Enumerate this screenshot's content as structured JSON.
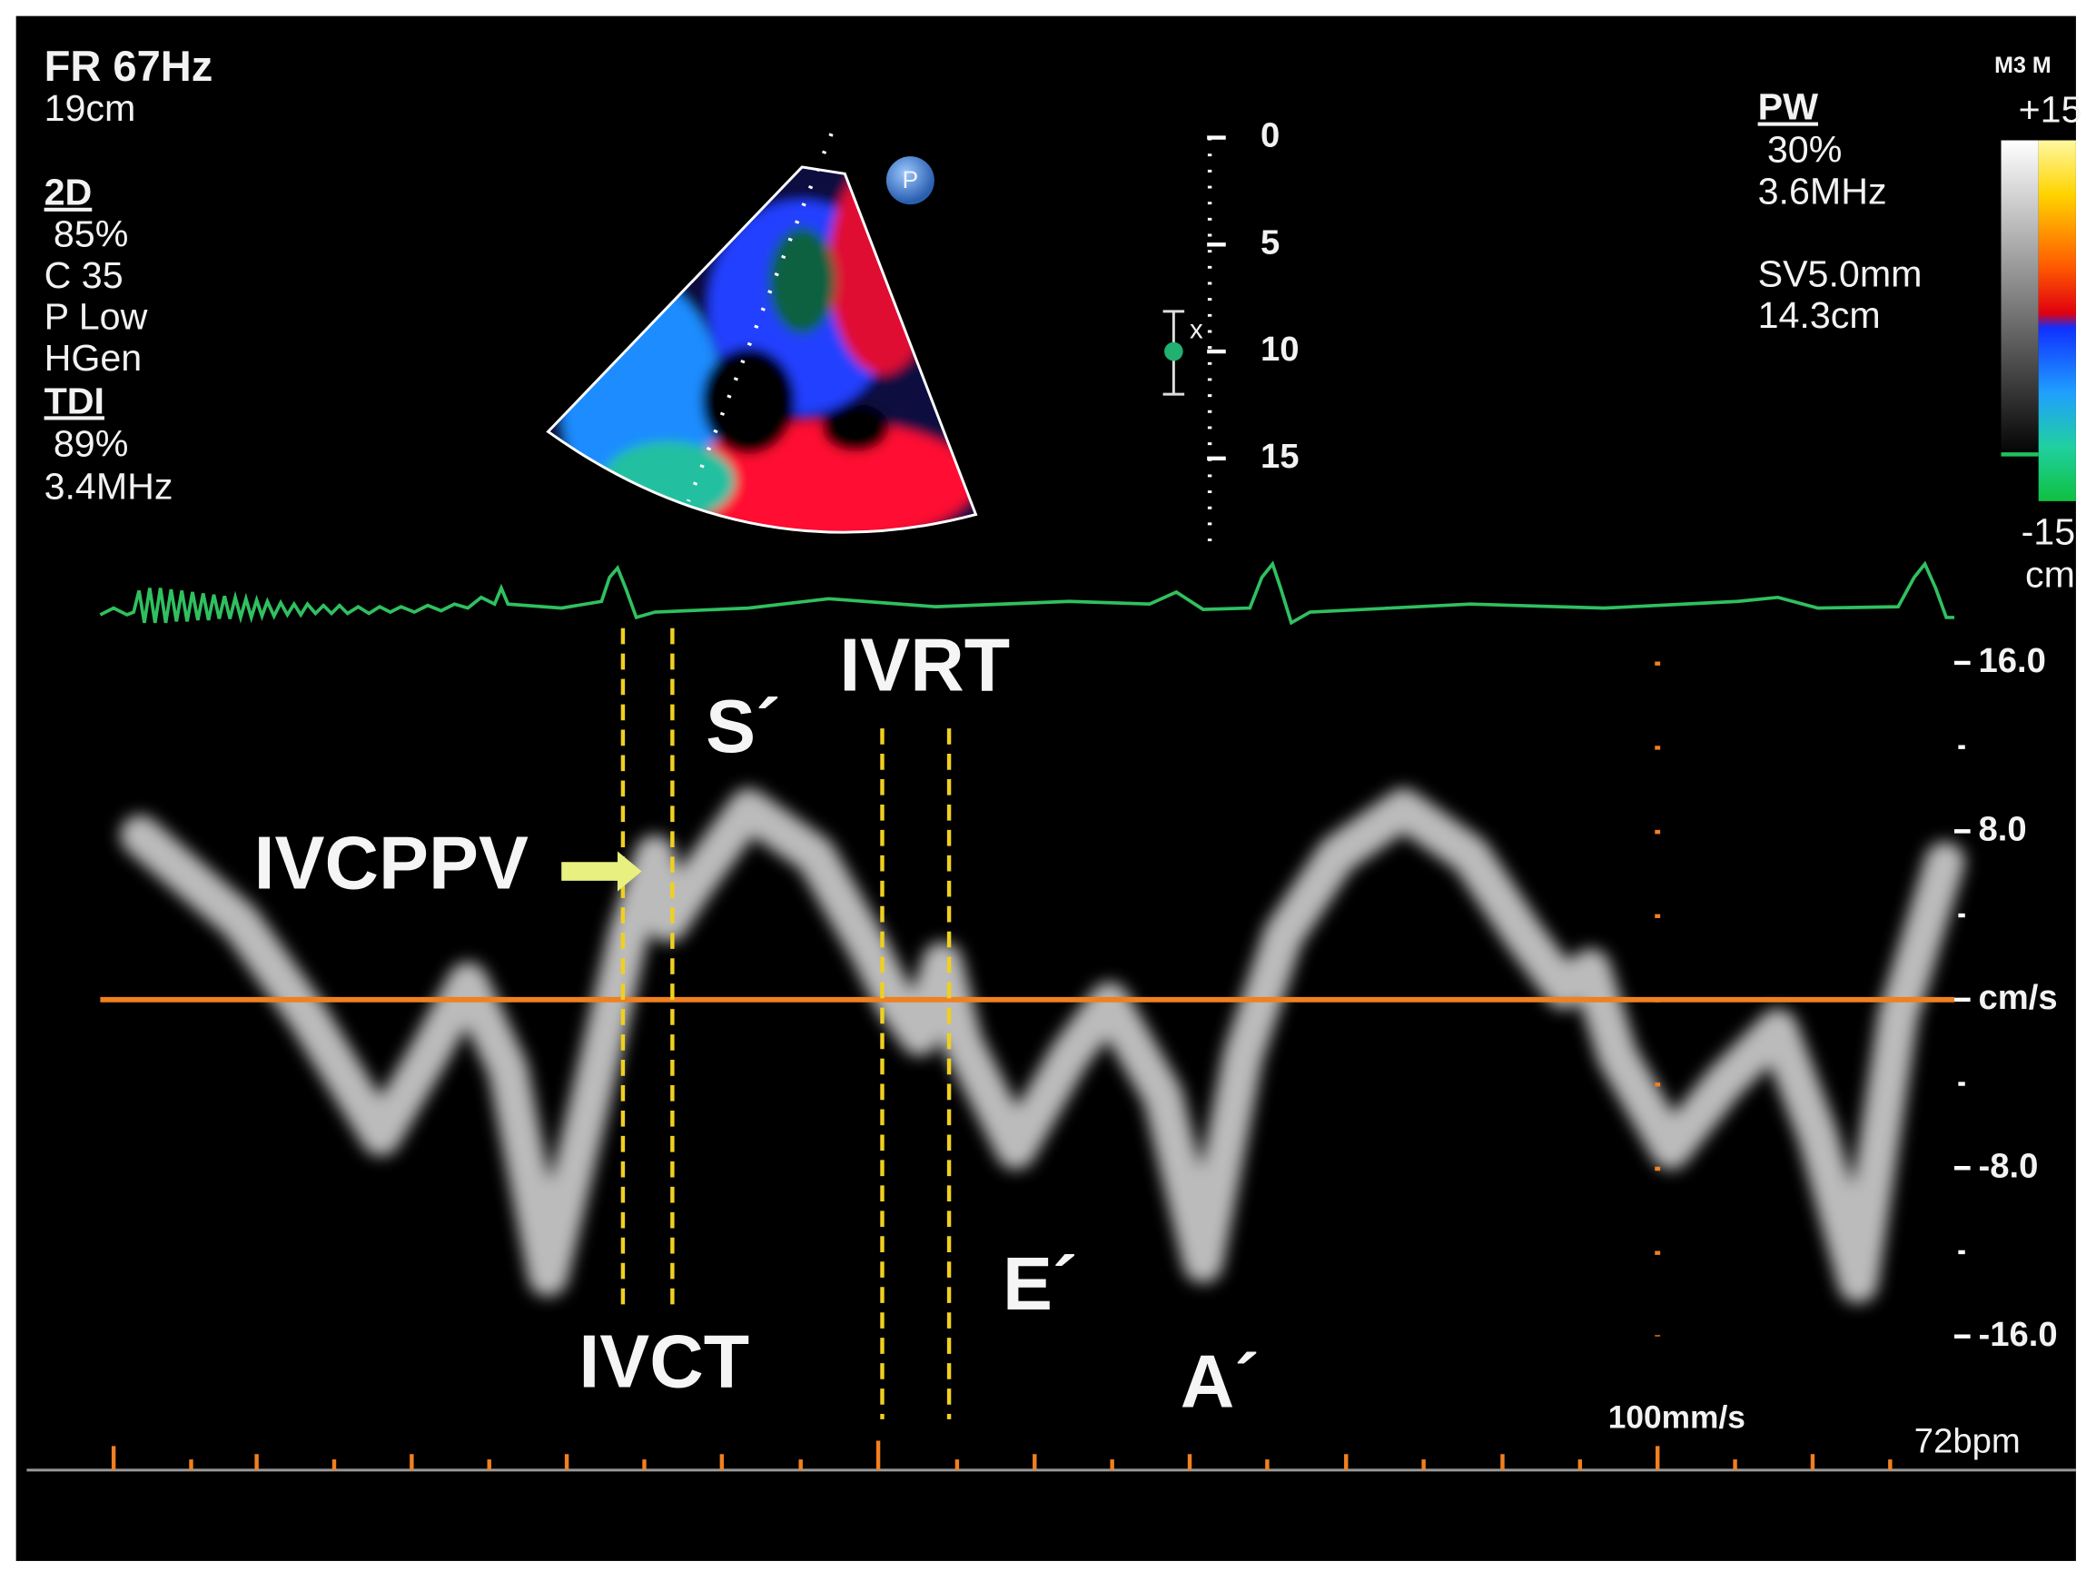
{
  "left_panel": {
    "lines": [
      "FR 67Hz",
      "19cm"
    ],
    "mode_2d": {
      "label": "2D",
      "lines": [
        "85%",
        "C 35",
        "P Low",
        "HGen"
      ]
    },
    "tdi": {
      "label": "TDI",
      "lines": [
        "89%",
        "3.4MHz"
      ]
    }
  },
  "right_panel": {
    "label": "PW",
    "lines": [
      "30%",
      "3.6MHz",
      "SV5.0mm",
      "14.3cm"
    ]
  },
  "color_bar": {
    "title": "M3 M",
    "top": "+15",
    "bottom": "-15",
    "unit": "cm"
  },
  "sector_marker": "P",
  "depth_scale": {
    "labels": [
      "0",
      "5",
      "10",
      "15"
    ],
    "cursor": "x"
  },
  "velocity_scale": [
    "16.0",
    "8.0",
    "cm/s",
    "-8.0",
    "-16.0"
  ],
  "annotations": {
    "ivcppv": "IVCPPV",
    "s_prime": "S´",
    "ivrt": "IVRT",
    "ivct": "IVCT",
    "e_prime": "E´",
    "a_prime": "A´"
  },
  "footer": {
    "sweep": "100mm/s",
    "rate": "72bpm"
  }
}
